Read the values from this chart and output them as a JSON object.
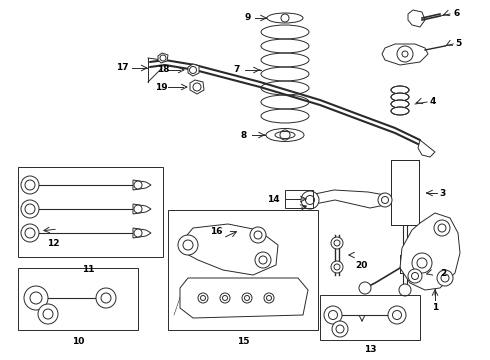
{
  "background": "#ffffff",
  "lc": "#2a2a2a",
  "lw": 0.7,
  "figsize": [
    4.9,
    3.6
  ],
  "dpi": 100
}
